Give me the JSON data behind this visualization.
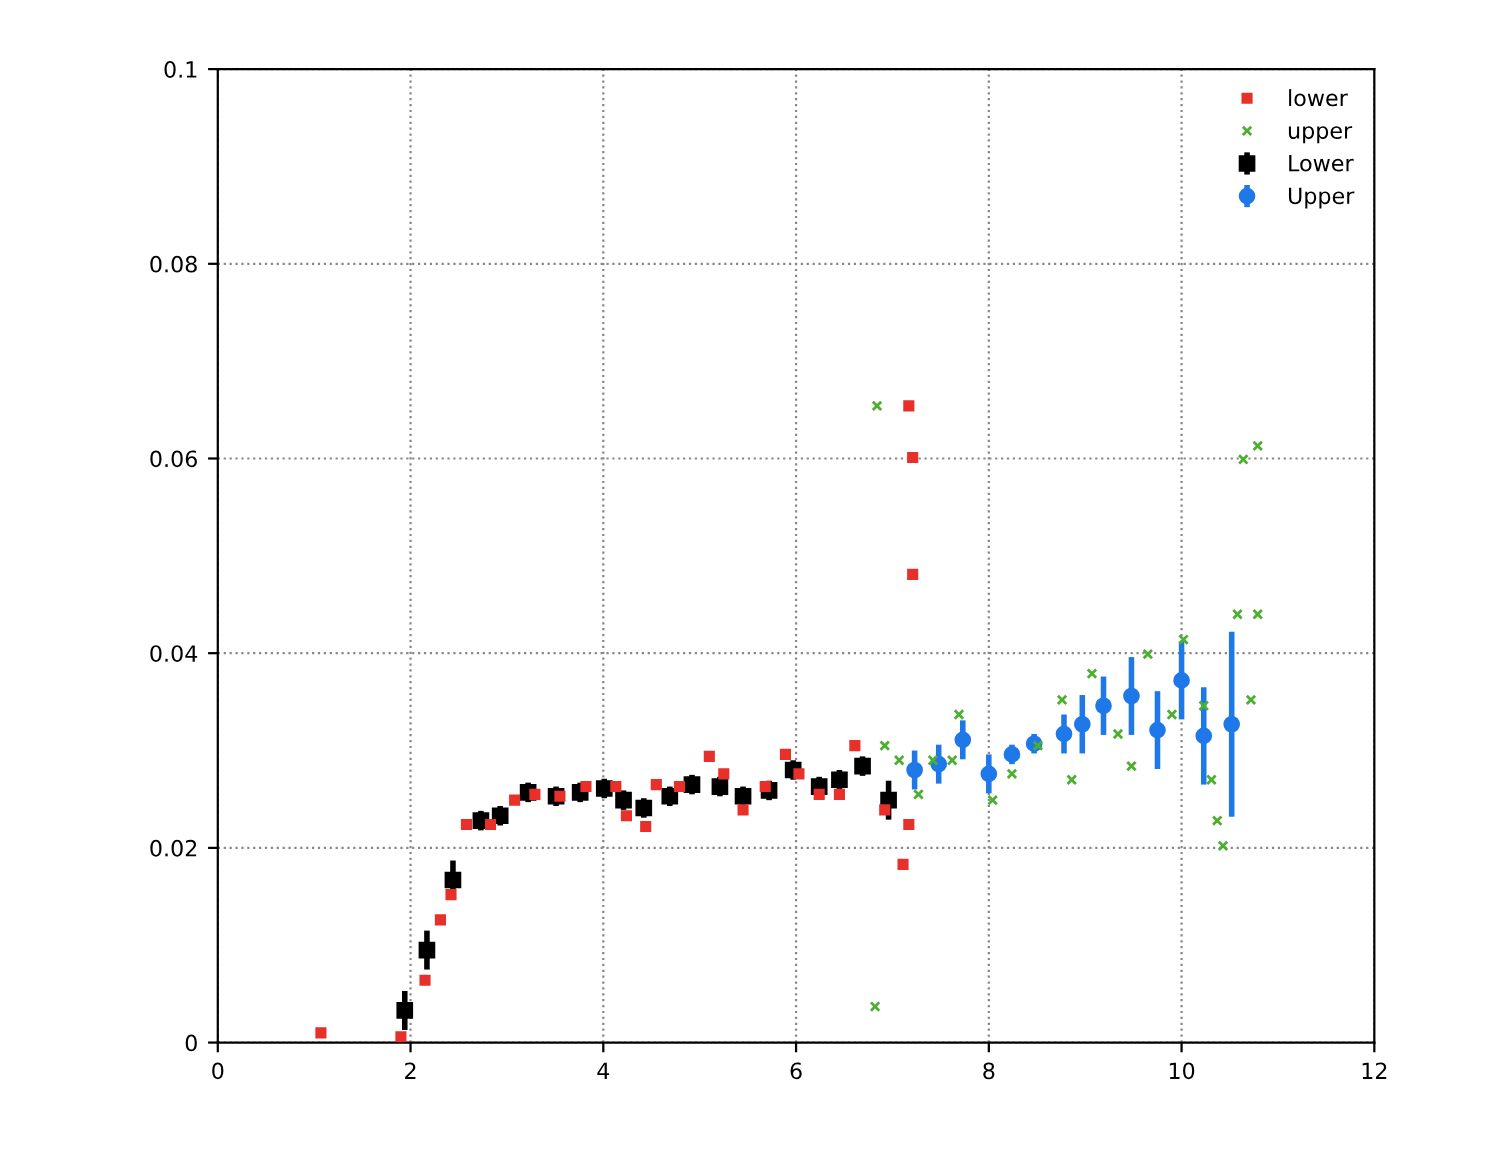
{
  "chart_data": {
    "type": "scatter",
    "xlim": [
      0,
      12
    ],
    "xticks": [
      0,
      2,
      4,
      6,
      8,
      10,
      12
    ],
    "ylim": [
      0,
      0.1
    ],
    "yticks": [
      0,
      0.02,
      0.04,
      0.06,
      0.08,
      0.1
    ],
    "grid": true,
    "legend": "top right",
    "series": [
      {
        "name": "lower",
        "color": "#e8302a",
        "marker": "square",
        "x": [
          1.07,
          1.9,
          2.15,
          2.31,
          2.42,
          2.58,
          2.83,
          3.08,
          3.29,
          3.55,
          3.82,
          4.13,
          4.24,
          4.44,
          4.55,
          4.79,
          5.1,
          5.25,
          5.45,
          5.68,
          5.89,
          6.03,
          6.24,
          6.45,
          6.61,
          6.92,
          7.17,
          7.11,
          7.21,
          7.21,
          7.17
        ],
        "values": [
          0.001,
          0.0006,
          0.0064,
          0.0126,
          0.0152,
          0.0224,
          0.0224,
          0.0249,
          0.0255,
          0.0253,
          0.0263,
          0.0263,
          0.0233,
          0.0222,
          0.0265,
          0.0263,
          0.0294,
          0.0276,
          0.0239,
          0.0263,
          0.0296,
          0.0276,
          0.0255,
          0.0255,
          0.0305,
          0.0239,
          0.0224,
          0.0183,
          0.0481,
          0.0601,
          0.0654
        ]
      },
      {
        "name": "upper",
        "color": "#4caf32",
        "marker": "cross",
        "x": [
          6.82,
          6.84,
          6.92,
          7.07,
          7.27,
          7.42,
          7.62,
          7.69,
          8.04,
          8.24,
          8.51,
          8.76,
          8.86,
          9.07,
          9.34,
          9.48,
          9.65,
          9.9,
          10.02,
          10.23,
          10.31,
          10.37,
          10.43,
          10.58,
          10.72,
          10.79,
          10.64,
          10.79
        ],
        "values": [
          0.0037,
          0.0654,
          0.0305,
          0.029,
          0.0255,
          0.029,
          0.029,
          0.0337,
          0.0249,
          0.0276,
          0.0305,
          0.0352,
          0.027,
          0.0379,
          0.0317,
          0.0284,
          0.0399,
          0.0337,
          0.0414,
          0.0346,
          0.027,
          0.0228,
          0.0202,
          0.044,
          0.0352,
          0.044,
          0.0599,
          0.0613
        ]
      },
      {
        "name": "Lower",
        "color": "#000000",
        "marker": "square",
        "x": [
          1.94,
          2.17,
          2.44,
          2.73,
          2.93,
          3.22,
          3.51,
          3.76,
          4.01,
          4.21,
          4.42,
          4.69,
          4.92,
          5.21,
          5.45,
          5.72,
          5.97,
          6.24,
          6.45,
          6.69,
          6.96
        ],
        "values": [
          0.0033,
          0.0095,
          0.0167,
          0.0228,
          0.0233,
          0.0257,
          0.0253,
          0.0257,
          0.0261,
          0.0249,
          0.0241,
          0.0253,
          0.0265,
          0.0263,
          0.0253,
          0.0259,
          0.028,
          0.0263,
          0.027,
          0.0284,
          0.0249
        ],
        "errors": [
          0.002,
          0.002,
          0.002,
          0.001,
          0.001,
          0.001,
          0.001,
          0.001,
          0.001,
          0.001,
          0.001,
          0.001,
          0.001,
          0.001,
          0.001,
          0.001,
          0.001,
          0.001,
          0.001,
          0.001,
          0.002
        ]
      },
      {
        "name": "Upper",
        "color": "#1f78e8",
        "marker": "circle",
        "x": [
          7.23,
          7.48,
          7.73,
          8.0,
          8.24,
          8.47,
          8.78,
          8.97,
          9.19,
          9.48,
          9.75,
          10.0,
          10.23,
          10.52
        ],
        "values": [
          0.028,
          0.0286,
          0.0311,
          0.0276,
          0.0296,
          0.0307,
          0.0317,
          0.0327,
          0.0346,
          0.0356,
          0.0321,
          0.0372,
          0.0315,
          0.0327
        ],
        "errors": [
          0.002,
          0.002,
          0.002,
          0.002,
          0.001,
          0.001,
          0.002,
          0.003,
          0.003,
          0.004,
          0.004,
          0.004,
          0.005,
          0.0095
        ]
      }
    ]
  }
}
